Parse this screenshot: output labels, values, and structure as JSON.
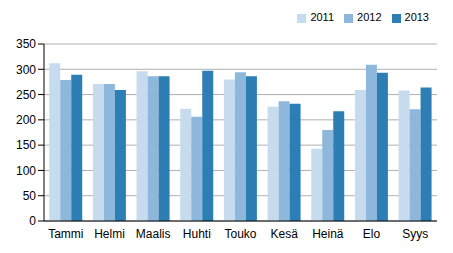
{
  "chart_data": {
    "type": "bar",
    "categories": [
      "Tammi",
      "Helmi",
      "Maalis",
      "Huhti",
      "Touko",
      "Kesä",
      "Heinä",
      "Elo",
      "Syys"
    ],
    "series": [
      {
        "name": "2011",
        "color": "#c6dcee",
        "values": [
          312,
          271,
          296,
          222,
          280,
          226,
          143,
          259,
          258
        ]
      },
      {
        "name": "2012",
        "color": "#8db8dc",
        "values": [
          279,
          271,
          286,
          206,
          294,
          237,
          180,
          309,
          221
        ]
      },
      {
        "name": "2013",
        "color": "#2d7eb5",
        "values": [
          289,
          259,
          286,
          297,
          286,
          232,
          217,
          293,
          264
        ]
      }
    ],
    "ylim": [
      0,
      350
    ],
    "yticks": [
      0,
      50,
      100,
      150,
      200,
      250,
      300,
      350
    ],
    "grid": true,
    "legend": "upper right"
  }
}
